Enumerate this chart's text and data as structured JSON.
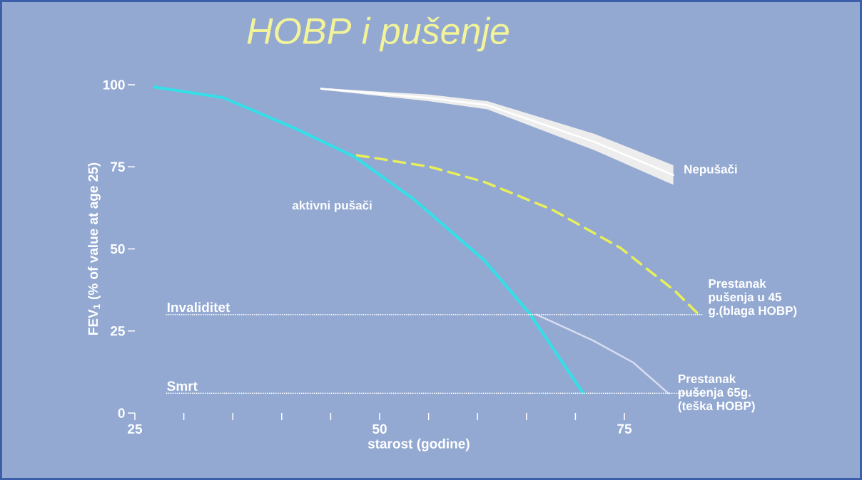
{
  "chart_data": {
    "type": "line",
    "title": "HOBP i pušenje",
    "xlabel": "starost (godine)",
    "ylabel": "FEV$_{1}$ (% of value at age 25)",
    "xlim": [
      25,
      83
    ],
    "ylim": [
      0,
      100
    ],
    "xticks": [
      25,
      {
        "value": 30,
        "label": null
      },
      {
        "value": 35,
        "label": null
      },
      {
        "value": 40,
        "label": null
      },
      {
        "value": 45,
        "label": null
      },
      50,
      {
        "value": 55,
        "label": null
      },
      {
        "value": 60,
        "label": null
      },
      {
        "value": 65,
        "label": null
      },
      {
        "value": 70,
        "label": null
      },
      75
    ],
    "yticks": [
      0,
      25,
      50,
      75,
      100
    ],
    "series": [
      {
        "name": "Nepušači",
        "color": "#ffffff",
        "x": [
          44,
          55,
          61,
          72,
          80
        ],
        "values": [
          98.8,
          96,
          93.8,
          82.5,
          72.5
        ],
        "lower": [
          98.5,
          95,
          92.5,
          80,
          69.5
        ],
        "upper": [
          99,
          97,
          95,
          85,
          75.5
        ]
      },
      {
        "name": "aktivni pušači",
        "color": "#33e0e8",
        "x": [
          27,
          34,
          41.3,
          47.4,
          53.5,
          60.7,
          65.3,
          70.8
        ],
        "values": [
          99.3,
          96.1,
          86.8,
          78.1,
          65.1,
          46.5,
          30.4,
          6
        ]
      },
      {
        "name": "Prestanak pušenja u 45 g.(blaga HOBP)",
        "color": "#e8ef5a",
        "line_style": "dashed",
        "x": [
          47.7,
          55,
          60.6,
          67.6,
          74.6,
          80.2,
          82.6
        ],
        "values": [
          78.5,
          75.1,
          70.5,
          62,
          50.3,
          37.1,
          30
        ]
      },
      {
        "name": "Prestanak pušenja 65g. (teška HOBP)",
        "color": "#d8dcef",
        "x": [
          66,
          71.8,
          75.9,
          79.5
        ],
        "values": [
          30,
          22.1,
          15.4,
          6
        ]
      }
    ],
    "ref_lines": [
      {
        "axis": "y",
        "value": 30,
        "label": "Invaliditet",
        "color": "#ffffff",
        "line_style": "dotted"
      },
      {
        "axis": "y",
        "value": 6,
        "label": "Smrt",
        "color": "#ffffff",
        "line_style": "dotted"
      }
    ]
  }
}
